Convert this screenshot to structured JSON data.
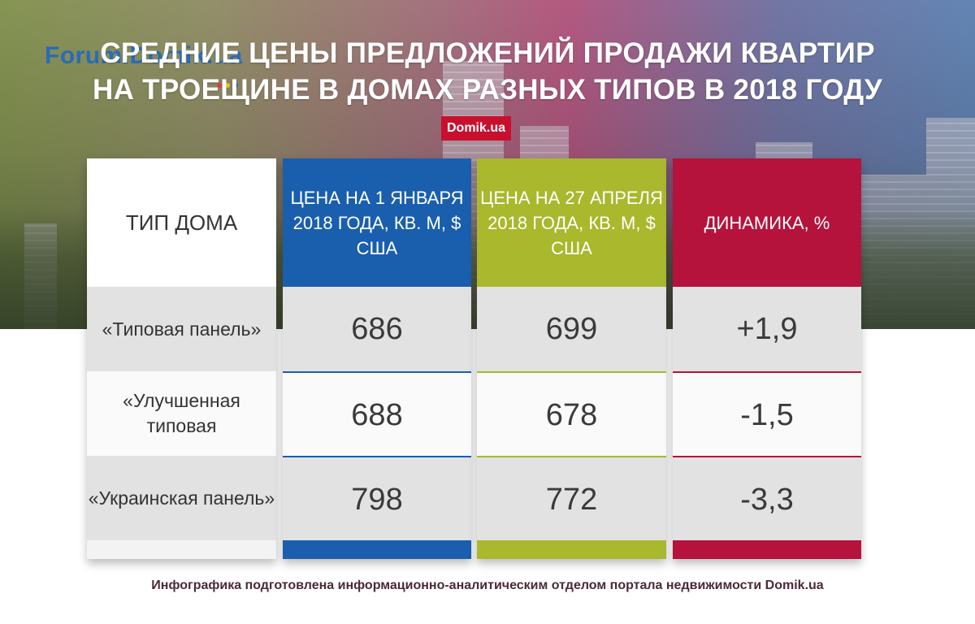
{
  "logo": {
    "text": "Forum.Domik.ua",
    "dot_colors": [
      "#e63946",
      "#f4c20d",
      "#2a6bb8"
    ]
  },
  "title": {
    "line1": "Средние цены предложений продажи квартир",
    "line2": "на Троещине в домах разных типов в 2018 году"
  },
  "brand": "Domik.ua",
  "table": {
    "headers": [
      "Тип дома",
      "Цена на 1 января 2018 года, кв. м, $ США",
      "Цена на 27 апреля 2018 года, кв. м, $ США",
      "Динамика, %"
    ],
    "rows": [
      {
        "type": "«Типовая панель»",
        "jan": "686",
        "apr": "699",
        "change": "+1,9"
      },
      {
        "type": "«Улучшенная типовая",
        "jan": "688",
        "apr": "678",
        "change": "-1,5"
      },
      {
        "type": "«Украинская панель»",
        "jan": "798",
        "apr": "772",
        "change": "-3,3"
      }
    ],
    "colors": {
      "jan": "#1a5fae",
      "apr": "#a9b82c",
      "change": "#b5123c"
    }
  },
  "footer": "Инфографика подготовлена информационно-аналитическим отделом портала недвижимости Domik.ua"
}
